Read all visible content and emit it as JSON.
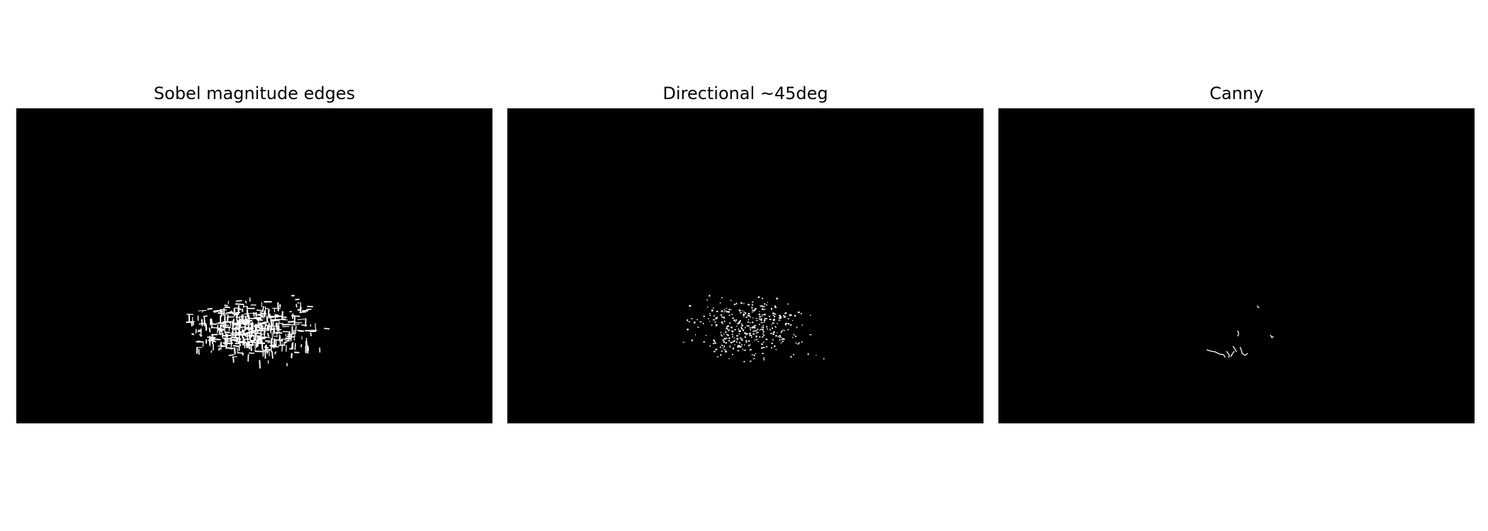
{
  "panels": [
    {
      "title": "Sobel magnitude edges",
      "image": "edge-map-sobel",
      "background": "#000000",
      "foreground": "#ffffff"
    },
    {
      "title": "Directional ~45deg",
      "image": "edge-map-directional-45",
      "background": "#000000",
      "foreground": "#ffffff"
    },
    {
      "title": "Canny",
      "image": "edge-map-canny",
      "background": "#000000",
      "foreground": "#ffffff"
    }
  ]
}
